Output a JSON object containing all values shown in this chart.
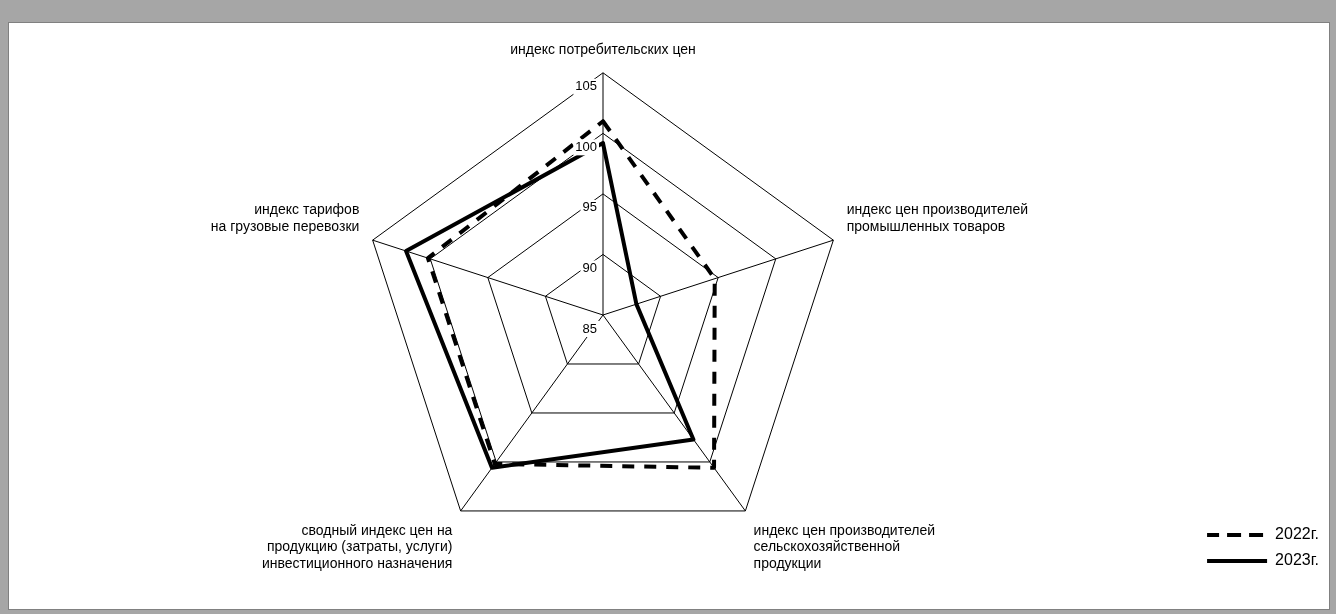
{
  "chart_data": {
    "type": "radar",
    "categories": [
      "индекс потребительских цен",
      "индекс цен производителей\nпромышленных товаров",
      "индекс цен производителей\nсельскохозяйственной\nпродукции",
      "сводный индекс цен на\nпродукцию (затраты, услуги)\nинвестиционного назначения",
      "индекс тарифов\nна грузовые перевозки"
    ],
    "series": [
      {
        "name": "2022г.",
        "color": "#000000",
        "line_style": "dashed",
        "values": [
          101.0,
          94.7,
          100.6,
          100.2,
          100.2
        ]
      },
      {
        "name": "2023г.",
        "color": "#000000",
        "line_style": "solid",
        "values": [
          99.2,
          87.9,
          97.7,
          100.6,
          102.1
        ]
      }
    ],
    "ylim": [
      85,
      105
    ],
    "yticks": [
      85,
      90,
      95,
      100,
      105
    ],
    "grid": true,
    "legend": "bottom right",
    "marker": "none"
  }
}
